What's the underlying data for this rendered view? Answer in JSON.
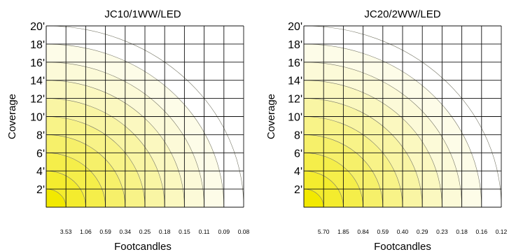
{
  "chart_data": [
    {
      "type": "heatmap",
      "title": "JC10/1WW/LED",
      "xlabel": "Footcandles",
      "ylabel": "Coverage",
      "yticks": [
        "2'",
        "4'",
        "6'",
        "8'",
        "10'",
        "12'",
        "14'",
        "16'",
        "18'",
        "20'"
      ],
      "xticks": [
        "3.53",
        "1.06",
        "0.59",
        "0.34",
        "0.25",
        "0.18",
        "0.15",
        "0.11",
        "0.09",
        "0.08"
      ],
      "coverage_ft": [
        2,
        4,
        6,
        8,
        10,
        12,
        14,
        16,
        18,
        20
      ],
      "footcandles": [
        3.53,
        1.06,
        0.59,
        0.34,
        0.25,
        0.18,
        0.15,
        0.11,
        0.09,
        0.08
      ],
      "grid": true,
      "colors": [
        "#f2e900",
        "#f4ec2e",
        "#f5ee4a",
        "#f6f06a",
        "#f8f388",
        "#f9f5a4",
        "#fbf8c0",
        "#fcfad8",
        "#fdfce8",
        "#ffffff"
      ]
    },
    {
      "type": "heatmap",
      "title": "JC20/2WW/LED",
      "xlabel": "Footcandles",
      "ylabel": "Coverage",
      "yticks": [
        "2'",
        "4'",
        "6'",
        "8'",
        "10'",
        "12'",
        "14'",
        "16'",
        "18'",
        "20'"
      ],
      "xticks": [
        "5.70",
        "1.85",
        "0.84",
        "0.59",
        "0.40",
        "0.29",
        "0.23",
        "0.18",
        "0.16",
        "0.12"
      ],
      "coverage_ft": [
        2,
        4,
        6,
        8,
        10,
        12,
        14,
        16,
        18,
        20
      ],
      "footcandles": [
        5.7,
        1.85,
        0.84,
        0.59,
        0.4,
        0.29,
        0.23,
        0.18,
        0.16,
        0.12
      ],
      "grid": true,
      "colors": [
        "#f2e900",
        "#f4ec2e",
        "#f5ee4a",
        "#f6f06a",
        "#f8f388",
        "#f9f5a4",
        "#fbf8c0",
        "#fcfad8",
        "#fdfce8",
        "#ffffff"
      ]
    }
  ]
}
